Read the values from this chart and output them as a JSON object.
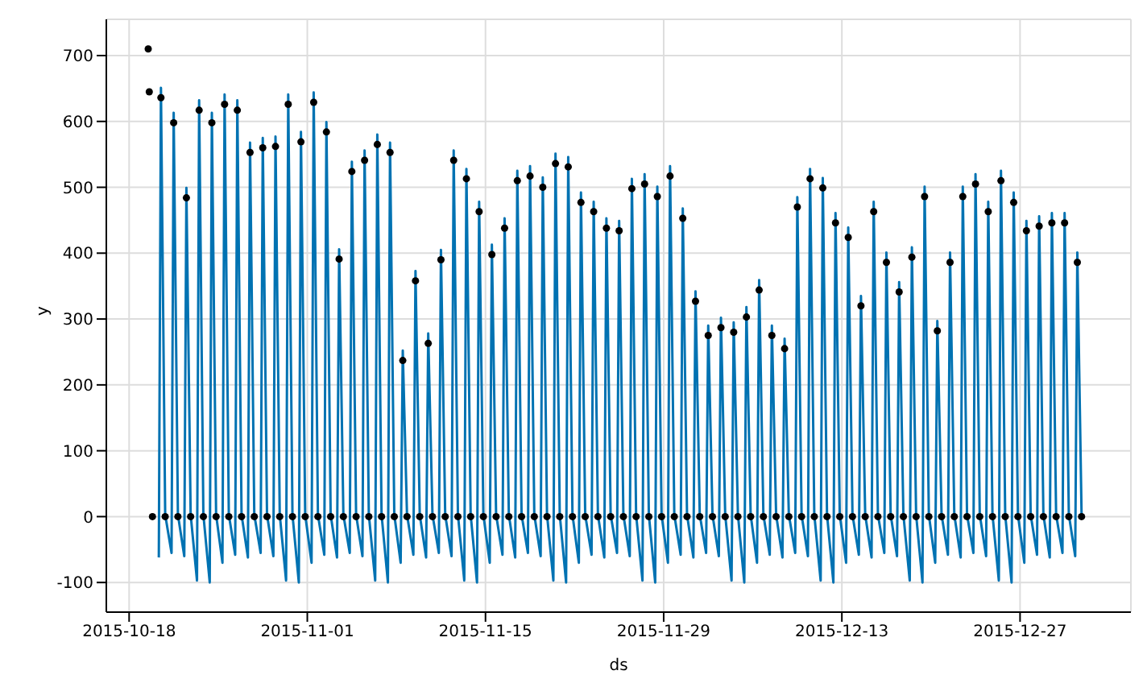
{
  "chart_data": {
    "type": "line",
    "xlabel": "ds",
    "ylabel": "y",
    "grid": true,
    "legend": false,
    "xlim": [
      "2015-10-16T05:00",
      "2016-01-04T17:00"
    ],
    "xticks": [
      "2015-10-18",
      "2015-11-01",
      "2015-11-15",
      "2015-11-29",
      "2015-12-13",
      "2015-12-27"
    ],
    "ylim": [
      -145,
      755
    ],
    "yticks": [
      -100,
      0,
      100,
      200,
      300,
      400,
      500,
      600,
      700
    ],
    "series": [
      {
        "color": "#0072b2",
        "marker": "none",
        "line_style": "solid",
        "x": [
          "2015-10-20T08:00",
          "2015-10-20T12:00",
          "2015-10-20T20:00",
          "2015-10-21T08:00",
          "2015-10-21T12:00",
          "2015-10-21T20:00",
          "2015-10-22T08:00",
          "2015-10-22T12:00",
          "2015-10-22T20:00",
          "2015-10-23T08:00",
          "2015-10-23T12:00",
          "2015-10-23T20:00",
          "2015-10-24T08:00",
          "2015-10-24T12:00",
          "2015-10-24T20:00",
          "2015-10-25T08:00",
          "2015-10-25T12:00",
          "2015-10-25T20:00",
          "2015-10-26T08:00",
          "2015-10-26T12:00",
          "2015-10-26T20:00",
          "2015-10-27T08:00",
          "2015-10-27T12:00",
          "2015-10-27T20:00",
          "2015-10-28T08:00",
          "2015-10-28T12:00",
          "2015-10-28T20:00",
          "2015-10-29T08:00",
          "2015-10-29T12:00",
          "2015-10-29T20:00",
          "2015-10-30T08:00",
          "2015-10-30T12:00",
          "2015-10-30T20:00",
          "2015-10-31T08:00",
          "2015-10-31T12:00",
          "2015-10-31T20:00",
          "2015-11-01T08:00",
          "2015-11-01T12:00",
          "2015-11-01T20:00",
          "2015-11-02T08:00",
          "2015-11-02T12:00",
          "2015-11-02T20:00",
          "2015-11-03T08:00",
          "2015-11-03T12:00",
          "2015-11-03T20:00",
          "2015-11-04T08:00",
          "2015-11-04T12:00",
          "2015-11-04T20:00",
          "2015-11-05T08:00",
          "2015-11-05T12:00",
          "2015-11-05T20:00",
          "2015-11-06T08:00",
          "2015-11-06T12:00",
          "2015-11-06T20:00",
          "2015-11-07T08:00",
          "2015-11-07T12:00",
          "2015-11-07T20:00",
          "2015-11-08T08:00",
          "2015-11-08T12:00",
          "2015-11-08T20:00",
          "2015-11-09T08:00",
          "2015-11-09T12:00",
          "2015-11-09T20:00",
          "2015-11-10T08:00",
          "2015-11-10T12:00",
          "2015-11-10T20:00",
          "2015-11-11T08:00",
          "2015-11-11T12:00",
          "2015-11-11T20:00",
          "2015-11-12T08:00",
          "2015-11-12T12:00",
          "2015-11-12T20:00",
          "2015-11-13T08:00",
          "2015-11-13T12:00",
          "2015-11-13T20:00",
          "2015-11-14T08:00",
          "2015-11-14T12:00",
          "2015-11-14T20:00",
          "2015-11-15T08:00",
          "2015-11-15T12:00",
          "2015-11-15T20:00",
          "2015-11-16T08:00",
          "2015-11-16T12:00",
          "2015-11-16T20:00",
          "2015-11-17T08:00",
          "2015-11-17T12:00",
          "2015-11-17T20:00",
          "2015-11-18T08:00",
          "2015-11-18T12:00",
          "2015-11-18T20:00",
          "2015-11-19T08:00",
          "2015-11-19T12:00",
          "2015-11-19T20:00",
          "2015-11-20T08:00",
          "2015-11-20T12:00",
          "2015-11-20T20:00",
          "2015-11-21T08:00",
          "2015-11-21T12:00",
          "2015-11-21T20:00",
          "2015-11-22T08:00",
          "2015-11-22T12:00",
          "2015-11-22T20:00",
          "2015-11-23T08:00",
          "2015-11-23T12:00",
          "2015-11-23T20:00",
          "2015-11-24T08:00",
          "2015-11-24T12:00",
          "2015-11-24T20:00",
          "2015-11-25T08:00",
          "2015-11-25T12:00",
          "2015-11-25T20:00",
          "2015-11-26T08:00",
          "2015-11-26T12:00",
          "2015-11-26T20:00",
          "2015-11-27T08:00",
          "2015-11-27T12:00",
          "2015-11-27T20:00",
          "2015-11-28T08:00",
          "2015-11-28T12:00",
          "2015-11-28T20:00",
          "2015-11-29T08:00",
          "2015-11-29T12:00",
          "2015-11-29T20:00",
          "2015-11-30T08:00",
          "2015-11-30T12:00",
          "2015-11-30T20:00",
          "2015-12-01T08:00",
          "2015-12-01T12:00",
          "2015-12-01T20:00",
          "2015-12-02T08:00",
          "2015-12-02T12:00",
          "2015-12-02T20:00",
          "2015-12-03T08:00",
          "2015-12-03T12:00",
          "2015-12-03T20:00",
          "2015-12-04T08:00",
          "2015-12-04T12:00",
          "2015-12-04T20:00",
          "2015-12-05T08:00",
          "2015-12-05T12:00",
          "2015-12-05T20:00",
          "2015-12-06T08:00",
          "2015-12-06T12:00",
          "2015-12-06T20:00",
          "2015-12-07T08:00",
          "2015-12-07T12:00",
          "2015-12-07T20:00",
          "2015-12-08T08:00",
          "2015-12-08T12:00",
          "2015-12-08T20:00",
          "2015-12-09T08:00",
          "2015-12-09T12:00",
          "2015-12-09T20:00",
          "2015-12-10T08:00",
          "2015-12-10T12:00",
          "2015-12-10T20:00",
          "2015-12-11T08:00",
          "2015-12-11T12:00",
          "2015-12-11T20:00",
          "2015-12-12T08:00",
          "2015-12-12T12:00",
          "2015-12-12T20:00",
          "2015-12-13T08:00",
          "2015-12-13T12:00",
          "2015-12-13T20:00",
          "2015-12-14T08:00",
          "2015-12-14T12:00",
          "2015-12-14T20:00",
          "2015-12-15T08:00",
          "2015-12-15T12:00",
          "2015-12-15T20:00",
          "2015-12-16T08:00",
          "2015-12-16T12:00",
          "2015-12-16T20:00",
          "2015-12-17T08:00",
          "2015-12-17T12:00",
          "2015-12-17T20:00",
          "2015-12-18T08:00",
          "2015-12-18T12:00",
          "2015-12-18T20:00",
          "2015-12-19T08:00",
          "2015-12-19T12:00",
          "2015-12-19T20:00",
          "2015-12-20T08:00",
          "2015-12-20T12:00",
          "2015-12-20T20:00",
          "2015-12-21T08:00",
          "2015-12-21T12:00",
          "2015-12-21T20:00",
          "2015-12-22T08:00",
          "2015-12-22T12:00",
          "2015-12-22T20:00",
          "2015-12-23T08:00",
          "2015-12-23T12:00",
          "2015-12-23T20:00",
          "2015-12-24T08:00",
          "2015-12-24T12:00",
          "2015-12-24T20:00",
          "2015-12-25T08:00",
          "2015-12-25T12:00",
          "2015-12-25T20:00",
          "2015-12-26T08:00",
          "2015-12-26T12:00",
          "2015-12-26T20:00",
          "2015-12-27T08:00",
          "2015-12-27T12:00",
          "2015-12-27T20:00",
          "2015-12-28T08:00",
          "2015-12-28T12:00",
          "2015-12-28T20:00",
          "2015-12-29T08:00",
          "2015-12-29T12:00",
          "2015-12-29T20:00",
          "2015-12-30T08:00",
          "2015-12-30T12:00",
          "2015-12-30T20:00",
          "2015-12-31T08:00",
          "2015-12-31T12:00",
          "2015-12-31T20:00"
        ],
        "values": [
          -62,
          651,
          3,
          -55,
          613,
          3,
          -60,
          499,
          3,
          -97,
          632,
          3,
          -100,
          613,
          3,
          -70,
          641,
          3,
          -58,
          632,
          3,
          -62,
          568,
          3,
          -55,
          575,
          3,
          -60,
          577,
          3,
          -97,
          641,
          3,
          -100,
          584,
          3,
          -70,
          644,
          3,
          -58,
          599,
          3,
          -62,
          406,
          3,
          -55,
          539,
          3,
          -60,
          556,
          3,
          -97,
          580,
          3,
          -100,
          568,
          3,
          -70,
          252,
          3,
          -58,
          373,
          3,
          -62,
          278,
          3,
          -55,
          405,
          3,
          -60,
          556,
          3,
          -97,
          528,
          3,
          -100,
          478,
          3,
          -70,
          413,
          3,
          -58,
          453,
          3,
          -62,
          525,
          3,
          -55,
          532,
          3,
          -60,
          515,
          3,
          -97,
          551,
          3,
          -100,
          546,
          3,
          -70,
          492,
          3,
          -58,
          478,
          3,
          -62,
          453,
          3,
          -55,
          449,
          3,
          -60,
          513,
          3,
          -97,
          520,
          3,
          -100,
          501,
          3,
          -70,
          532,
          3,
          -58,
          468,
          3,
          -62,
          342,
          3,
          -55,
          290,
          3,
          -60,
          302,
          3,
          -97,
          295,
          3,
          -100,
          318,
          3,
          -70,
          359,
          3,
          -58,
          290,
          3,
          -62,
          270,
          3,
          -55,
          485,
          3,
          -60,
          528,
          3,
          -97,
          514,
          3,
          -100,
          461,
          3,
          -70,
          439,
          3,
          -58,
          335,
          3,
          -62,
          478,
          3,
          -55,
          401,
          3,
          -60,
          356,
          3,
          -97,
          409,
          3,
          -100,
          501,
          3,
          -70,
          297,
          3,
          -58,
          401,
          3,
          -62,
          501,
          3,
          -55,
          520,
          3,
          -60,
          478,
          3,
          -97,
          525,
          3,
          -100,
          492,
          3,
          -70,
          449,
          3,
          -58,
          456,
          3,
          -62,
          461,
          3,
          -55,
          461,
          3,
          -60,
          401,
          3
        ]
      },
      {
        "type": "scatter",
        "color": "#000000",
        "marker": "circle",
        "x": [
          "2015-10-19T12:00",
          "2015-10-19T14:00",
          "2015-10-19T20:00",
          "2015-10-20T12:00",
          "2015-10-20T20:00",
          "2015-10-21T12:00",
          "2015-10-21T20:00",
          "2015-10-22T12:00",
          "2015-10-22T20:00",
          "2015-10-23T12:00",
          "2015-10-23T20:00",
          "2015-10-24T12:00",
          "2015-10-24T20:00",
          "2015-10-25T12:00",
          "2015-10-25T20:00",
          "2015-10-26T12:00",
          "2015-10-26T20:00",
          "2015-10-27T12:00",
          "2015-10-27T20:00",
          "2015-10-28T12:00",
          "2015-10-28T20:00",
          "2015-10-29T12:00",
          "2015-10-29T20:00",
          "2015-10-30T12:00",
          "2015-10-30T20:00",
          "2015-10-31T12:00",
          "2015-10-31T20:00",
          "2015-11-01T12:00",
          "2015-11-01T20:00",
          "2015-11-02T12:00",
          "2015-11-02T20:00",
          "2015-11-03T12:00",
          "2015-11-03T20:00",
          "2015-11-04T12:00",
          "2015-11-04T20:00",
          "2015-11-05T12:00",
          "2015-11-05T20:00",
          "2015-11-06T12:00",
          "2015-11-06T20:00",
          "2015-11-07T12:00",
          "2015-11-07T20:00",
          "2015-11-08T12:00",
          "2015-11-08T20:00",
          "2015-11-09T12:00",
          "2015-11-09T20:00",
          "2015-11-10T12:00",
          "2015-11-10T20:00",
          "2015-11-11T12:00",
          "2015-11-11T20:00",
          "2015-11-12T12:00",
          "2015-11-12T20:00",
          "2015-11-13T12:00",
          "2015-11-13T20:00",
          "2015-11-14T12:00",
          "2015-11-14T20:00",
          "2015-11-15T12:00",
          "2015-11-15T20:00",
          "2015-11-16T12:00",
          "2015-11-16T20:00",
          "2015-11-17T12:00",
          "2015-11-17T20:00",
          "2015-11-18T12:00",
          "2015-11-18T20:00",
          "2015-11-19T12:00",
          "2015-11-19T20:00",
          "2015-11-20T12:00",
          "2015-11-20T20:00",
          "2015-11-21T12:00",
          "2015-11-21T20:00",
          "2015-11-22T12:00",
          "2015-11-22T20:00",
          "2015-11-23T12:00",
          "2015-11-23T20:00",
          "2015-11-24T12:00",
          "2015-11-24T20:00",
          "2015-11-25T12:00",
          "2015-11-25T20:00",
          "2015-11-26T12:00",
          "2015-11-26T20:00",
          "2015-11-27T12:00",
          "2015-11-27T20:00",
          "2015-11-28T12:00",
          "2015-11-28T20:00",
          "2015-11-29T12:00",
          "2015-11-29T20:00",
          "2015-11-30T12:00",
          "2015-11-30T20:00",
          "2015-12-01T12:00",
          "2015-12-01T20:00",
          "2015-12-02T12:00",
          "2015-12-02T20:00",
          "2015-12-03T12:00",
          "2015-12-03T20:00",
          "2015-12-04T12:00",
          "2015-12-04T20:00",
          "2015-12-05T12:00",
          "2015-12-05T20:00",
          "2015-12-06T12:00",
          "2015-12-06T20:00",
          "2015-12-07T12:00",
          "2015-12-07T20:00",
          "2015-12-08T12:00",
          "2015-12-08T20:00",
          "2015-12-09T12:00",
          "2015-12-09T20:00",
          "2015-12-10T12:00",
          "2015-12-10T20:00",
          "2015-12-11T12:00",
          "2015-12-11T20:00",
          "2015-12-12T12:00",
          "2015-12-12T20:00",
          "2015-12-13T12:00",
          "2015-12-13T20:00",
          "2015-12-14T12:00",
          "2015-12-14T20:00",
          "2015-12-15T12:00",
          "2015-12-15T20:00",
          "2015-12-16T12:00",
          "2015-12-16T20:00",
          "2015-12-17T12:00",
          "2015-12-17T20:00",
          "2015-12-18T12:00",
          "2015-12-18T20:00",
          "2015-12-19T12:00",
          "2015-12-19T20:00",
          "2015-12-20T12:00",
          "2015-12-20T20:00",
          "2015-12-21T12:00",
          "2015-12-21T20:00",
          "2015-12-22T12:00",
          "2015-12-22T20:00",
          "2015-12-23T12:00",
          "2015-12-23T20:00",
          "2015-12-24T12:00",
          "2015-12-24T20:00",
          "2015-12-25T12:00",
          "2015-12-25T20:00",
          "2015-12-26T12:00",
          "2015-12-26T20:00",
          "2015-12-27T12:00",
          "2015-12-27T20:00",
          "2015-12-28T12:00",
          "2015-12-28T20:00",
          "2015-12-29T12:00",
          "2015-12-29T20:00",
          "2015-12-30T12:00",
          "2015-12-30T20:00",
          "2015-12-31T12:00",
          "2015-12-31T20:00"
        ],
        "values": [
          710,
          645,
          0,
          636,
          0,
          598,
          0,
          484,
          0,
          617,
          0,
          598,
          0,
          626,
          0,
          617,
          0,
          553,
          0,
          560,
          0,
          562,
          0,
          626,
          0,
          569,
          0,
          629,
          0,
          584,
          0,
          391,
          0,
          524,
          0,
          541,
          0,
          565,
          0,
          553,
          0,
          237,
          0,
          358,
          0,
          263,
          0,
          390,
          0,
          541,
          0,
          513,
          0,
          463,
          0,
          398,
          0,
          438,
          0,
          510,
          0,
          517,
          0,
          500,
          0,
          536,
          0,
          531,
          0,
          477,
          0,
          463,
          0,
          438,
          0,
          434,
          0,
          498,
          0,
          505,
          0,
          486,
          0,
          517,
          0,
          453,
          0,
          327,
          0,
          275,
          0,
          287,
          0,
          280,
          0,
          303,
          0,
          344,
          0,
          275,
          0,
          255,
          0,
          470,
          0,
          513,
          0,
          499,
          0,
          446,
          0,
          424,
          0,
          320,
          0,
          463,
          0,
          386,
          0,
          341,
          0,
          394,
          0,
          486,
          0,
          282,
          0,
          386,
          0,
          486,
          0,
          505,
          0,
          463,
          0,
          510,
          0,
          477,
          0,
          434,
          0,
          441,
          0,
          446,
          0,
          446,
          0,
          386,
          0
        ]
      }
    ]
  }
}
